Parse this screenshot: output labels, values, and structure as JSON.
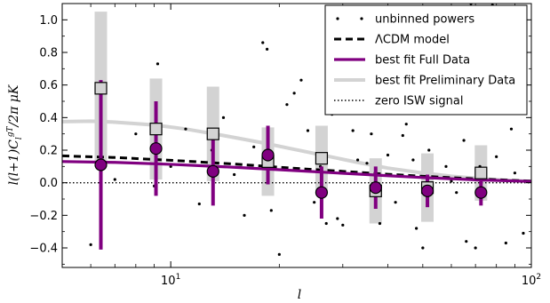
{
  "chart_data": {
    "type": "scatter",
    "title": "",
    "xlabel": "l",
    "ylabel": "l(l+1)C_l^{gT}/2π μK",
    "xscale": "log",
    "xlim": [
      5,
      100
    ],
    "ylim": [
      -0.52,
      1.1
    ],
    "x_ticks": [
      {
        "value": 10,
        "base": "10",
        "exp": "1"
      },
      {
        "value": 100,
        "base": "10",
        "exp": "2"
      }
    ],
    "y_ticks": [
      -0.4,
      -0.2,
      0.0,
      0.2,
      0.4,
      0.6,
      0.8,
      1.0
    ],
    "y_tick_labels": [
      "−0.4",
      "−0.2",
      "0.0",
      "0.2",
      "0.4",
      "0.6",
      "0.8",
      "1.0"
    ],
    "grid": false,
    "legend_position": "top-right",
    "legend": [
      {
        "label": "unbinned powers",
        "style": "dots"
      },
      {
        "label": "ΛCDM model",
        "style": "dashed-black"
      },
      {
        "label": "best fit Full Data",
        "style": "solid-purple"
      },
      {
        "label": "best fit Preliminary Data",
        "style": "solid-lightgray"
      },
      {
        "label": "zero ISW signal",
        "style": "dotted-black"
      }
    ],
    "colors": {
      "purple": "#800080",
      "lightgray": "#d3d3d3",
      "black": "#000000"
    },
    "series": [
      {
        "name": "unbinned powers",
        "kind": "points",
        "x": [
          6,
          6.5,
          7,
          8,
          9,
          9.2,
          10,
          11,
          12,
          13,
          14,
          15,
          16,
          17,
          18,
          18.5,
          19,
          20,
          21,
          22,
          23,
          24,
          25,
          26,
          27,
          28,
          29,
          30,
          32,
          33,
          35,
          36,
          38,
          40,
          42,
          44,
          45,
          47,
          48,
          50,
          52,
          55,
          58,
          60,
          62,
          65,
          66,
          68,
          70,
          72,
          75,
          78,
          80,
          85,
          88,
          90,
          95
        ],
        "y": [
          -0.38,
          0.6,
          0.02,
          0.3,
          -0.02,
          0.73,
          0.1,
          0.33,
          -0.13,
          0.2,
          0.4,
          0.05,
          -0.2,
          0.22,
          0.86,
          0.82,
          -0.17,
          -0.44,
          0.48,
          0.55,
          0.63,
          0.32,
          -0.12,
          0.1,
          -0.25,
          0.42,
          -0.22,
          -0.26,
          0.32,
          0.14,
          0.12,
          0.3,
          -0.25,
          0.17,
          -0.12,
          0.29,
          0.36,
          0.14,
          -0.28,
          -0.4,
          0.2,
          0.76,
          0.1,
          0.01,
          -0.06,
          0.26,
          -0.36,
          1.1,
          -0.4,
          0.1,
          0.43,
          1.09,
          0.16,
          -0.37,
          0.33,
          0.06,
          -0.31
        ]
      },
      {
        "name": "ΛCDM model",
        "kind": "line",
        "x": [
          5,
          7,
          10,
          15,
          20,
          30,
          40,
          50,
          70,
          100
        ],
        "y": [
          0.165,
          0.155,
          0.138,
          0.115,
          0.095,
          0.07,
          0.052,
          0.04,
          0.024,
          0.01
        ]
      },
      {
        "name": "best fit Full Data",
        "kind": "line",
        "x": [
          5,
          7,
          10,
          15,
          20,
          30,
          40,
          50,
          70,
          100
        ],
        "y": [
          0.13,
          0.125,
          0.113,
          0.095,
          0.08,
          0.058,
          0.043,
          0.032,
          0.018,
          0.008
        ]
      },
      {
        "name": "best fit Preliminary Data",
        "kind": "line",
        "x": [
          5,
          6,
          7,
          9,
          11,
          14,
          18,
          22,
          27,
          33,
          40,
          50,
          60,
          75,
          100
        ],
        "y": [
          0.375,
          0.378,
          0.372,
          0.355,
          0.33,
          0.29,
          0.245,
          0.205,
          0.165,
          0.125,
          0.09,
          0.06,
          0.04,
          0.022,
          0.008
        ]
      },
      {
        "name": "zero ISW signal",
        "kind": "line",
        "x": [
          5,
          100
        ],
        "y": [
          0,
          0
        ]
      },
      {
        "name": "binned Full Data",
        "kind": "errorbar",
        "x": [
          6.4,
          9.1,
          13.1,
          18.6,
          26.2,
          37.0,
          51.5,
          72.5
        ],
        "y": [
          0.11,
          0.21,
          0.07,
          0.17,
          -0.06,
          -0.03,
          -0.05,
          -0.06
        ],
        "err": [
          0.52,
          0.29,
          0.21,
          0.18,
          0.16,
          0.13,
          0.1,
          0.08
        ]
      },
      {
        "name": "binned Preliminary Data",
        "kind": "errorbar",
        "x": [
          6.4,
          9.1,
          13.1,
          18.6,
          26.2,
          37.0,
          51.5,
          72.5
        ],
        "y": [
          0.58,
          0.33,
          0.3,
          0.13,
          0.15,
          -0.05,
          -0.03,
          0.06
        ],
        "err": [
          0.47,
          0.31,
          0.29,
          0.21,
          0.2,
          0.2,
          0.21,
          0.17
        ]
      }
    ]
  }
}
